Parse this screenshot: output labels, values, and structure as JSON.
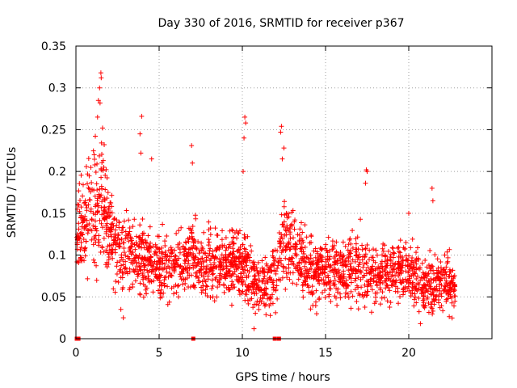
{
  "chart_data": {
    "type": "scatter",
    "title": "Day 330 of 2016, SRMTID for receiver p367",
    "xlabel": "GPS time / hours",
    "ylabel": "SRMTID / TECUs",
    "xlim": [
      0,
      25
    ],
    "ylim": [
      0,
      0.35
    ],
    "grid": true,
    "marker": "+",
    "series_color": "#ff0000",
    "x_ticks": [
      {
        "value": 0,
        "label": "0"
      },
      {
        "value": 5,
        "label": "5"
      },
      {
        "value": 10,
        "label": "10"
      },
      {
        "value": 15,
        "label": "15"
      },
      {
        "value": 20,
        "label": "20"
      }
    ],
    "y_ticks": [
      {
        "value": 0,
        "label": "0"
      },
      {
        "value": 0.05,
        "label": "0.05"
      },
      {
        "value": 0.1,
        "label": "0.1"
      },
      {
        "value": 0.15,
        "label": "0.15"
      },
      {
        "value": 0.2,
        "label": "0.2"
      },
      {
        "value": 0.25,
        "label": "0.25"
      },
      {
        "value": 0.3,
        "label": "0.3"
      },
      {
        "value": 0.35,
        "label": "0.35"
      }
    ],
    "time_range_hours": [
      0.05,
      22.8
    ],
    "profile": [
      {
        "x": 0.0,
        "mean": 0.12,
        "spread": 0.03
      },
      {
        "x": 0.5,
        "mean": 0.14,
        "spread": 0.035
      },
      {
        "x": 1.0,
        "mean": 0.15,
        "spread": 0.04
      },
      {
        "x": 1.5,
        "mean": 0.16,
        "spread": 0.045
      },
      {
        "x": 2.0,
        "mean": 0.13,
        "spread": 0.035
      },
      {
        "x": 2.5,
        "mean": 0.11,
        "spread": 0.03
      },
      {
        "x": 3.0,
        "mean": 0.1,
        "spread": 0.03
      },
      {
        "x": 3.5,
        "mean": 0.095,
        "spread": 0.03
      },
      {
        "x": 4.0,
        "mean": 0.1,
        "spread": 0.03
      },
      {
        "x": 5.0,
        "mean": 0.085,
        "spread": 0.025
      },
      {
        "x": 6.0,
        "mean": 0.085,
        "spread": 0.025
      },
      {
        "x": 7.0,
        "mean": 0.1,
        "spread": 0.03
      },
      {
        "x": 8.0,
        "mean": 0.09,
        "spread": 0.025
      },
      {
        "x": 9.0,
        "mean": 0.085,
        "spread": 0.025
      },
      {
        "x": 10.0,
        "mean": 0.09,
        "spread": 0.028
      },
      {
        "x": 10.5,
        "mean": 0.075,
        "spread": 0.025
      },
      {
        "x": 11.0,
        "mean": 0.06,
        "spread": 0.02
      },
      {
        "x": 11.5,
        "mean": 0.065,
        "spread": 0.02
      },
      {
        "x": 12.0,
        "mean": 0.08,
        "spread": 0.025
      },
      {
        "x": 12.5,
        "mean": 0.12,
        "spread": 0.035
      },
      {
        "x": 13.0,
        "mean": 0.11,
        "spread": 0.03
      },
      {
        "x": 14.0,
        "mean": 0.08,
        "spread": 0.025
      },
      {
        "x": 15.0,
        "mean": 0.08,
        "spread": 0.025
      },
      {
        "x": 16.0,
        "mean": 0.085,
        "spread": 0.025
      },
      {
        "x": 17.0,
        "mean": 0.085,
        "spread": 0.027
      },
      {
        "x": 18.0,
        "mean": 0.07,
        "spread": 0.022
      },
      {
        "x": 19.0,
        "mean": 0.08,
        "spread": 0.025
      },
      {
        "x": 20.0,
        "mean": 0.08,
        "spread": 0.025
      },
      {
        "x": 21.0,
        "mean": 0.06,
        "spread": 0.02
      },
      {
        "x": 22.0,
        "mean": 0.07,
        "spread": 0.022
      },
      {
        "x": 22.8,
        "mean": 0.06,
        "spread": 0.02
      }
    ],
    "peak_points": [
      {
        "x": 1.5,
        "y": 0.318
      },
      {
        "x": 1.52,
        "y": 0.312
      },
      {
        "x": 1.42,
        "y": 0.3
      },
      {
        "x": 1.35,
        "y": 0.285
      },
      {
        "x": 1.45,
        "y": 0.282
      },
      {
        "x": 1.3,
        "y": 0.265
      },
      {
        "x": 1.6,
        "y": 0.252
      },
      {
        "x": 1.7,
        "y": 0.232
      },
      {
        "x": 0.7,
        "y": 0.197
      },
      {
        "x": 1.1,
        "y": 0.22
      },
      {
        "x": 3.95,
        "y": 0.266
      },
      {
        "x": 3.85,
        "y": 0.245
      },
      {
        "x": 3.9,
        "y": 0.222
      },
      {
        "x": 4.55,
        "y": 0.215
      },
      {
        "x": 6.95,
        "y": 0.231
      },
      {
        "x": 7.0,
        "y": 0.21
      },
      {
        "x": 10.15,
        "y": 0.265
      },
      {
        "x": 10.2,
        "y": 0.258
      },
      {
        "x": 10.1,
        "y": 0.24
      },
      {
        "x": 10.05,
        "y": 0.2
      },
      {
        "x": 12.35,
        "y": 0.254
      },
      {
        "x": 12.3,
        "y": 0.247
      },
      {
        "x": 12.5,
        "y": 0.228
      },
      {
        "x": 12.4,
        "y": 0.215
      },
      {
        "x": 17.45,
        "y": 0.202
      },
      {
        "x": 17.5,
        "y": 0.2
      },
      {
        "x": 17.4,
        "y": 0.186
      },
      {
        "x": 21.4,
        "y": 0.18
      },
      {
        "x": 21.45,
        "y": 0.165
      },
      {
        "x": 20.0,
        "y": 0.15
      },
      {
        "x": 2.85,
        "y": 0.025
      },
      {
        "x": 2.7,
        "y": 0.035
      },
      {
        "x": 10.7,
        "y": 0.012
      },
      {
        "x": 20.7,
        "y": 0.018
      }
    ],
    "zero_points": [
      {
        "x": 0.05,
        "y": 0
      },
      {
        "x": 0.15,
        "y": 0
      },
      {
        "x": 7.05,
        "y": 0
      },
      {
        "x": 11.95,
        "y": 0
      },
      {
        "x": 12.2,
        "y": 0
      }
    ]
  }
}
